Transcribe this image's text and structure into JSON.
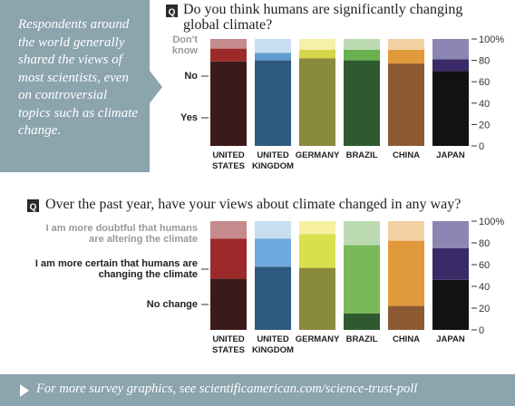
{
  "sidebar": {
    "text": "Respondents around the world generally shared the views of most scientists, even on controversial topics such as climate change."
  },
  "chart_data": [
    {
      "type": "stacked-bar",
      "badge": "Q",
      "title": "Do you think humans are significantly changing global climate?",
      "categories": [
        "UNITED STATES",
        "UNITED KINGDOM",
        "GERMANY",
        "BRAZIL",
        "CHINA",
        "JAPAN"
      ],
      "series": [
        {
          "name": "Yes",
          "text_color": "#222222",
          "colors": [
            "#3d1a1a",
            "#2e5a80",
            "#8a8a3c",
            "#2f5a30",
            "#8c5a32",
            "#121214"
          ],
          "values": [
            79,
            80,
            82,
            80,
            77,
            70
          ]
        },
        {
          "name": "No",
          "text_color": "#222222",
          "colors": [
            "#9c2a2a",
            "#5f9ccf",
            "#d6d64c",
            "#6bb04e",
            "#e09a3c",
            "#3a2a68"
          ],
          "values": [
            12,
            7,
            8,
            10,
            13,
            11
          ]
        },
        {
          "name": "Don't know",
          "text_color": "#9a9a9a",
          "colors": [
            "#c48a8c",
            "#c8def0",
            "#f5f0aa",
            "#bbdab2",
            "#f3d0a4",
            "#8c87b2"
          ],
          "values": [
            9,
            13,
            10,
            10,
            10,
            19
          ]
        }
      ],
      "ylim": [
        0,
        100
      ],
      "yticks": [
        0,
        20,
        40,
        60,
        80,
        {
          "value": 100,
          "label": "100%"
        }
      ]
    },
    {
      "type": "stacked-bar",
      "badge": "Q",
      "title": "Over the past year, have your views about climate changed in any way?",
      "categories": [
        "UNITED STATES",
        "UNITED KINGDOM",
        "GERMANY",
        "BRAZIL",
        "CHINA",
        "JAPAN"
      ],
      "series": [
        {
          "name": "No change",
          "text_color": "#222222",
          "colors": [
            "#3d1a1a",
            "#2e5a80",
            "#8a8a3c",
            "#2f5a30",
            "#8c5a32",
            "#121214"
          ],
          "values": [
            47,
            58,
            57,
            15,
            22,
            46
          ]
        },
        {
          "name": "I am more certain that humans are changing the climate",
          "text_color": "#222222",
          "colors": [
            "#9c2a2a",
            "#6fa8dc",
            "#d8e04c",
            "#7ab85a",
            "#e09a3c",
            "#3a2a68"
          ],
          "values": [
            37,
            26,
            31,
            63,
            60,
            29
          ]
        },
        {
          "name": "I am more doubtful that humans are altering the climate",
          "text_color": "#9a9a9a",
          "colors": [
            "#c48a8c",
            "#c8def0",
            "#f6f0a0",
            "#bbdab2",
            "#f3d0a4",
            "#8c87b2"
          ],
          "values": [
            16,
            16,
            12,
            22,
            18,
            25
          ]
        }
      ],
      "ylim": [
        0,
        100
      ],
      "yticks": [
        0,
        20,
        40,
        60,
        80,
        {
          "value": 100,
          "label": "100%"
        }
      ]
    }
  ],
  "footer": {
    "text": "For more survey graphics, see scientificamerican.com/science-trust-poll"
  }
}
